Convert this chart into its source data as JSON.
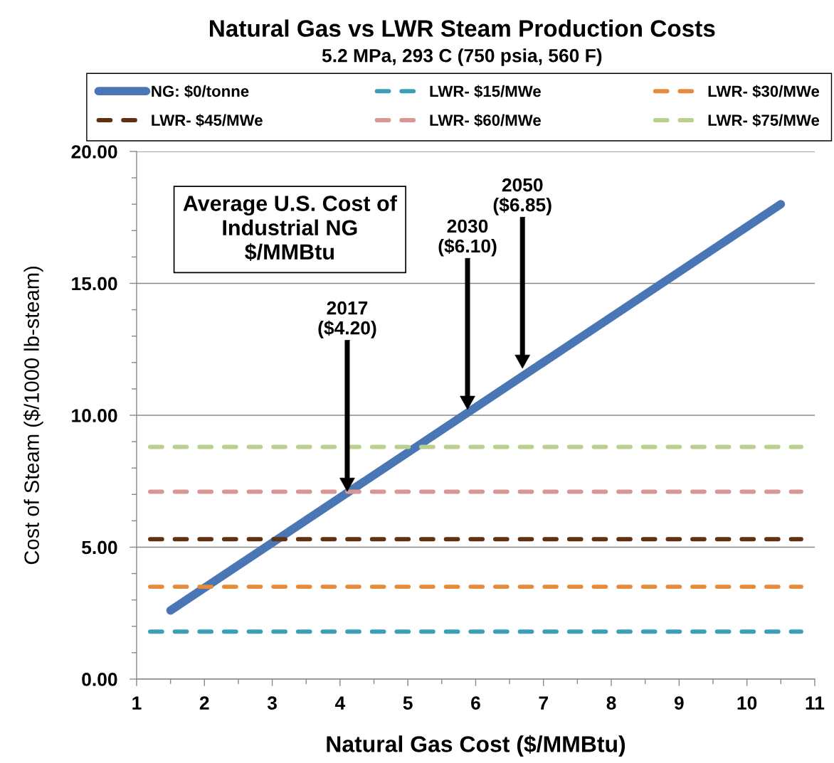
{
  "chart_data": {
    "type": "line",
    "title": "Natural Gas vs LWR Steam Production Costs",
    "subtitle": "5.2 MPa, 293 C (750 psia, 560 F)",
    "xlabel": "Natural Gas Cost ($/MMBtu)",
    "ylabel": "Cost of Steam ($/1000 lb-steam)",
    "series": [
      {
        "name": "NG: $0/tonne",
        "color": "#4a76b5",
        "line_style": "solid",
        "x": [
          1.5,
          10.5
        ],
        "values": [
          2.6,
          18.0
        ]
      },
      {
        "name": "LWR- $15/MWe",
        "color": "#3b9fb7",
        "line_style": "dashed",
        "x": [
          1.2,
          10.8
        ],
        "values": [
          1.8,
          1.8
        ]
      },
      {
        "name": "LWR- $30/MWe",
        "color": "#e68a3c",
        "line_style": "dashed",
        "x": [
          1.2,
          10.8
        ],
        "values": [
          3.5,
          3.5
        ]
      },
      {
        "name": "LWR- $45/MWe",
        "color": "#603010",
        "line_style": "dashed",
        "x": [
          1.2,
          10.8
        ],
        "values": [
          5.3,
          5.3
        ]
      },
      {
        "name": "LWR- $60/MWe",
        "color": "#d99694",
        "line_style": "dashed",
        "x": [
          1.2,
          10.8
        ],
        "values": [
          7.1,
          7.1
        ]
      },
      {
        "name": "LWR- $75/MWe",
        "color": "#b9d08f",
        "line_style": "dashed",
        "x": [
          1.2,
          10.8
        ],
        "values": [
          8.8,
          8.8
        ]
      }
    ],
    "xlim": [
      1,
      11
    ],
    "xticks": [
      1,
      2,
      3,
      4,
      5,
      6,
      7,
      8,
      9,
      10,
      11
    ],
    "ylim": [
      0,
      20
    ],
    "yticks": [
      {
        "value": 0,
        "label": "0.00"
      },
      {
        "value": 5,
        "label": "5.00"
      },
      {
        "value": 10,
        "label": "10.00"
      },
      {
        "value": 15,
        "label": "15.00"
      },
      {
        "value": 20,
        "label": "20.00"
      }
    ],
    "grid": "y",
    "legend": "top",
    "annotations": [
      "Average U.S. Cost of\nIndustrial NG\n$/MMBtu",
      "2017\n($4.20)",
      "2030\n($6.10)",
      "2050\n($6.85)"
    ]
  }
}
